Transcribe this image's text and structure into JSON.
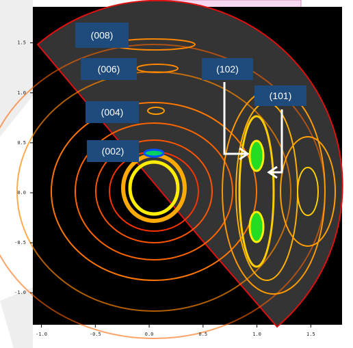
{
  "chart_data": {
    "type": "contour",
    "xlim": [
      -1.08,
      1.79
    ],
    "ylim": [
      -1.32,
      1.86
    ],
    "xticks": [
      {
        "value": -1,
        "label": "-1.0"
      },
      -0.5,
      {
        "value": 0,
        "label": "0.0"
      },
      0.5,
      {
        "value": 1,
        "label": "1.0"
      },
      1.5
    ],
    "yticks": [
      {
        "value": -1,
        "label": "-1.0"
      },
      -0.5,
      {
        "value": 0,
        "label": "0.0"
      },
      0.5,
      {
        "value": 1,
        "label": "1.0"
      },
      1.5
    ],
    "annotations": [
      "(008)",
      "(006)",
      "(004)",
      "(002)",
      "(102)",
      "(101)"
    ]
  }
}
